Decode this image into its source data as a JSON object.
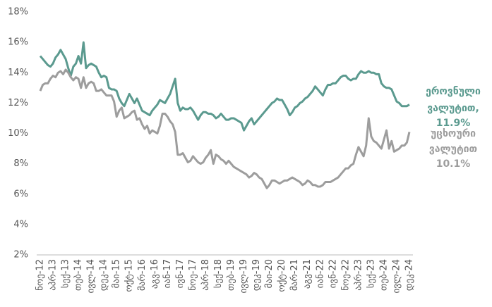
{
  "chart_data": {
    "type": "line",
    "categories": [
      "ნოე-12",
      null,
      null,
      null,
      null,
      "აპრ-13",
      null,
      null,
      null,
      null,
      "სექ-13",
      null,
      null,
      null,
      null,
      "თებ-14",
      null,
      null,
      null,
      null,
      "ივლ-14",
      null,
      null,
      null,
      null,
      "დეკ-14",
      null,
      null,
      null,
      null,
      "მაი-15",
      null,
      null,
      null,
      null,
      "ოქტ-15",
      null,
      null,
      null,
      null,
      "მარ-16",
      null,
      null,
      null,
      null,
      "აგვ-16",
      null,
      null,
      null,
      null,
      "იან-17",
      null,
      null,
      null,
      null,
      "ივნ-17",
      null,
      null,
      null,
      null,
      "ნოე-17",
      null,
      null,
      null,
      null,
      "აპრ-18",
      null,
      null,
      null,
      null,
      "სექ-18",
      null,
      null,
      null,
      null,
      "თებ-19",
      null,
      null,
      null,
      null,
      "ივლ-19",
      null,
      null,
      null,
      null,
      "დეკ-19",
      null,
      null,
      null,
      null,
      "მაი-20",
      null,
      null,
      null,
      null,
      "ოქტ-20",
      null,
      null,
      null,
      null,
      "მარ-21",
      null,
      null,
      null,
      null,
      "აგვ-21",
      null,
      null,
      null,
      null,
      "იან-22",
      null,
      null,
      null,
      null,
      "ივნ-22",
      null,
      null,
      null,
      null,
      "ნოე-22",
      null,
      null,
      null,
      null,
      "აპრ-23",
      null,
      null,
      null,
      null,
      "სექ-23",
      null,
      null,
      null,
      null,
      "თებ-24",
      null,
      null,
      null,
      null,
      "ივლ-24",
      null,
      null,
      null,
      null,
      "დეკ-24"
    ],
    "series": [
      {
        "name": "ეროვნული ვალუტით",
        "color": "#5b9a8f",
        "values": [
          15.1,
          14.9,
          14.7,
          14.5,
          14.4,
          14.6,
          15.0,
          15.2,
          15.5,
          15.2,
          14.9,
          14.3,
          13.8,
          14.4,
          14.6,
          15.1,
          14.6,
          16.0,
          14.3,
          14.5,
          14.6,
          14.5,
          14.4,
          14.0,
          13.7,
          13.8,
          13.7,
          13.0,
          12.9,
          12.9,
          12.8,
          12.3,
          12.0,
          11.8,
          12.2,
          12.6,
          12.3,
          12.0,
          12.3,
          11.9,
          11.5,
          11.4,
          11.3,
          11.2,
          11.5,
          11.7,
          11.9,
          12.2,
          12.1,
          12.0,
          12.3,
          12.6,
          13.1,
          13.6,
          12.0,
          11.5,
          11.7,
          11.6,
          11.6,
          11.7,
          11.5,
          11.2,
          10.9,
          11.2,
          11.4,
          11.4,
          11.3,
          11.3,
          11.2,
          11.0,
          11.1,
          11.3,
          11.1,
          10.9,
          10.9,
          11.0,
          11.0,
          10.9,
          10.8,
          10.7,
          10.2,
          10.5,
          10.8,
          11.0,
          10.6,
          10.8,
          11.0,
          11.2,
          11.4,
          11.6,
          11.8,
          12.0,
          12.1,
          12.3,
          12.2,
          12.2,
          11.9,
          11.6,
          11.2,
          11.4,
          11.7,
          11.8,
          12.0,
          12.1,
          12.3,
          12.4,
          12.6,
          12.8,
          13.1,
          12.9,
          12.7,
          12.5,
          12.9,
          13.2,
          13.2,
          13.3,
          13.3,
          13.5,
          13.7,
          13.8,
          13.8,
          13.6,
          13.5,
          13.6,
          13.6,
          13.9,
          14.1,
          14.0,
          14.0,
          14.1,
          14.0,
          14.0,
          13.9,
          13.9,
          13.3,
          13.1,
          13.0,
          13.0,
          12.9,
          12.5,
          12.1,
          12.0,
          11.8,
          11.8,
          11.8,
          11.9
        ]
      },
      {
        "name": "უცხოური ვალუტით",
        "color": "#9d9d9d",
        "values": [
          12.8,
          13.2,
          13.3,
          13.3,
          13.6,
          13.8,
          13.7,
          14.0,
          14.1,
          13.9,
          14.2,
          14.0,
          13.7,
          13.5,
          13.7,
          13.6,
          13.0,
          13.7,
          13.0,
          13.3,
          13.4,
          13.3,
          12.8,
          12.8,
          12.9,
          12.7,
          12.5,
          12.5,
          12.5,
          12.1,
          11.1,
          11.5,
          11.7,
          11.0,
          11.1,
          11.2,
          11.4,
          11.5,
          10.9,
          11.0,
          10.6,
          10.3,
          10.5,
          10.0,
          10.2,
          10.1,
          10.0,
          10.5,
          11.3,
          11.3,
          11.1,
          10.8,
          10.6,
          10.1,
          8.6,
          8.6,
          8.7,
          8.4,
          8.1,
          8.2,
          8.5,
          8.3,
          8.1,
          8.0,
          8.1,
          8.4,
          8.6,
          8.9,
          8.0,
          8.6,
          8.5,
          8.3,
          8.2,
          8.0,
          8.2,
          8.0,
          7.8,
          7.7,
          7.6,
          7.5,
          7.4,
          7.3,
          7.1,
          7.2,
          7.4,
          7.3,
          7.1,
          7.0,
          6.7,
          6.4,
          6.6,
          6.9,
          6.9,
          6.8,
          6.7,
          6.8,
          6.9,
          6.9,
          7.0,
          7.1,
          7.0,
          6.9,
          6.8,
          6.6,
          6.7,
          6.9,
          6.8,
          6.6,
          6.6,
          6.5,
          6.5,
          6.6,
          6.8,
          6.8,
          6.8,
          6.9,
          7.0,
          7.1,
          7.3,
          7.5,
          7.7,
          7.7,
          7.9,
          8.0,
          8.6,
          9.1,
          8.8,
          8.5,
          9.2,
          11.0,
          9.8,
          9.5,
          9.4,
          9.2,
          9.0,
          9.6,
          10.2,
          9.0,
          9.5,
          8.8,
          8.9,
          9.0,
          9.2,
          9.2,
          9.4,
          10.1
        ]
      }
    ],
    "annotations": [
      {
        "lines": [
          "ეროვნული",
          "ვალუტით,",
          "11.9%"
        ],
        "color": "#5b9a8f"
      },
      {
        "lines": [
          "უცხოური",
          "ვალუტით",
          "10.1%"
        ],
        "color": "#9d9d9d"
      }
    ],
    "ylim": [
      2,
      18
    ],
    "yticks": [
      {
        "value": 2,
        "label": "2%"
      },
      {
        "value": 4,
        "label": "4%"
      },
      {
        "value": 6,
        "label": "6%"
      },
      {
        "value": 8,
        "label": "8%"
      },
      {
        "value": 10,
        "label": "10%"
      },
      {
        "value": 12,
        "label": "12%"
      },
      {
        "value": 14,
        "label": "14%"
      },
      {
        "value": 16,
        "label": "16%"
      },
      {
        "value": 18,
        "label": "18%"
      }
    ],
    "grid": false
  }
}
